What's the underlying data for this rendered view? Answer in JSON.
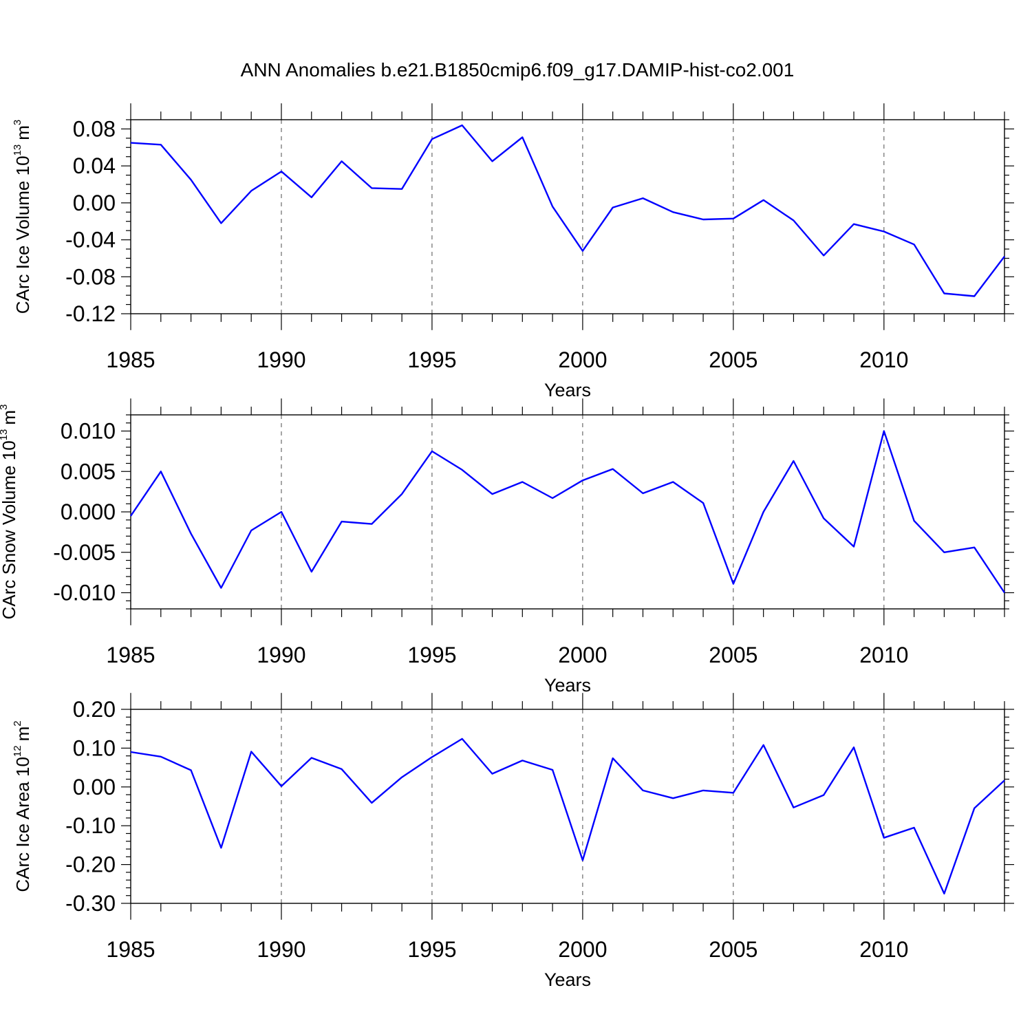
{
  "title": "ANN Anomalies b.e21.B1850cmip6.f09_g17.DAMIP-hist-co2.001",
  "line_color": "#0000ff",
  "chart_data": [
    {
      "type": "line",
      "ylabel": "CArc Ice Volume 10",
      "ylabel_exp": "13",
      "ylabel_unit": "m",
      "ylabel_unit_exp": "3",
      "xlabel": "Years",
      "xlim": [
        1985,
        2014
      ],
      "ylim": [
        -0.12,
        0.09
      ],
      "yticks": [
        -0.12,
        -0.08,
        -0.04,
        0.0,
        0.04,
        0.08
      ],
      "ytick_labels": [
        "-0.12",
        "-0.08",
        "-0.04",
        "0.00",
        "0.04",
        "0.08"
      ],
      "yminor_step": 0.01,
      "xticks": [
        1985,
        1990,
        1995,
        2000,
        2005,
        2010
      ],
      "xtick_labels": [
        "1985",
        "1990",
        "1995",
        "2000",
        "2005",
        "2010"
      ],
      "x": [
        1985,
        1986,
        1987,
        1988,
        1989,
        1990,
        1991,
        1992,
        1993,
        1994,
        1995,
        1996,
        1997,
        1998,
        1999,
        2000,
        2001,
        2002,
        2003,
        2004,
        2005,
        2006,
        2007,
        2008,
        2009,
        2010,
        2011,
        2012,
        2013,
        2014
      ],
      "values": [
        0.065,
        0.063,
        0.025,
        -0.022,
        0.013,
        0.034,
        0.006,
        0.045,
        0.016,
        0.015,
        0.069,
        0.084,
        0.045,
        0.071,
        -0.004,
        -0.052,
        -0.005,
        0.005,
        -0.01,
        -0.018,
        -0.017,
        0.003,
        -0.019,
        -0.057,
        -0.023,
        -0.031,
        -0.045,
        -0.098,
        -0.101,
        -0.058
      ]
    },
    {
      "type": "line",
      "ylabel": "CArc Snow Volume 10",
      "ylabel_exp": "13",
      "ylabel_unit": "m",
      "ylabel_unit_exp": "3",
      "xlabel": "Years",
      "xlim": [
        1985,
        2014
      ],
      "ylim": [
        -0.012,
        0.012
      ],
      "yticks": [
        -0.01,
        -0.005,
        0.0,
        0.005,
        0.01
      ],
      "ytick_labels": [
        "-0.010",
        "-0.005",
        "0.000",
        "0.005",
        "0.010"
      ],
      "yminor_step": 0.001,
      "xticks": [
        1985,
        1990,
        1995,
        2000,
        2005,
        2010
      ],
      "xtick_labels": [
        "1985",
        "1990",
        "1995",
        "2000",
        "2005",
        "2010"
      ],
      "x": [
        1985,
        1986,
        1987,
        1988,
        1989,
        1990,
        1991,
        1992,
        1993,
        1994,
        1995,
        1996,
        1997,
        1998,
        1999,
        2000,
        2001,
        2002,
        2003,
        2004,
        2005,
        2006,
        2007,
        2008,
        2009,
        2010,
        2011,
        2012,
        2013,
        2014
      ],
      "values": [
        -0.0005,
        0.005,
        -0.0027,
        -0.0094,
        -0.0023,
        0.0,
        -0.0074,
        -0.0012,
        -0.0015,
        0.0022,
        0.0075,
        0.0052,
        0.0022,
        0.0037,
        0.0017,
        0.0039,
        0.0053,
        0.0023,
        0.0037,
        0.0011,
        -0.0089,
        0.0,
        0.0063,
        -0.0008,
        -0.0043,
        0.01,
        -0.0011,
        -0.005,
        -0.0044,
        -0.01
      ]
    },
    {
      "type": "line",
      "ylabel": "CArc Ice Area 10",
      "ylabel_exp": "12",
      "ylabel_unit": "m",
      "ylabel_unit_exp": "2",
      "xlabel": "Years",
      "xlim": [
        1985,
        2014
      ],
      "ylim": [
        -0.3,
        0.2
      ],
      "yticks": [
        -0.3,
        -0.2,
        -0.1,
        0.0,
        0.1,
        0.2
      ],
      "ytick_labels": [
        "-0.30",
        "-0.20",
        "-0.10",
        "0.00",
        "0.10",
        "0.20"
      ],
      "yminor_step": 0.02,
      "xticks": [
        1985,
        1990,
        1995,
        2000,
        2005,
        2010
      ],
      "xtick_labels": [
        "1985",
        "1990",
        "1995",
        "2000",
        "2005",
        "2010"
      ],
      "x": [
        1985,
        1986,
        1987,
        1988,
        1989,
        1990,
        1991,
        1992,
        1993,
        1994,
        1995,
        1996,
        1997,
        1998,
        1999,
        2000,
        2001,
        2002,
        2003,
        2004,
        2005,
        2006,
        2007,
        2008,
        2009,
        2010,
        2011,
        2012,
        2013,
        2014
      ],
      "values": [
        0.09,
        0.078,
        0.043,
        -0.157,
        0.091,
        0.002,
        0.075,
        0.046,
        -0.041,
        0.025,
        0.077,
        0.124,
        0.034,
        0.068,
        0.044,
        -0.189,
        0.074,
        -0.009,
        -0.029,
        -0.009,
        -0.015,
        0.108,
        -0.053,
        -0.021,
        0.102,
        -0.131,
        -0.105,
        -0.275,
        -0.055,
        0.017
      ]
    }
  ]
}
